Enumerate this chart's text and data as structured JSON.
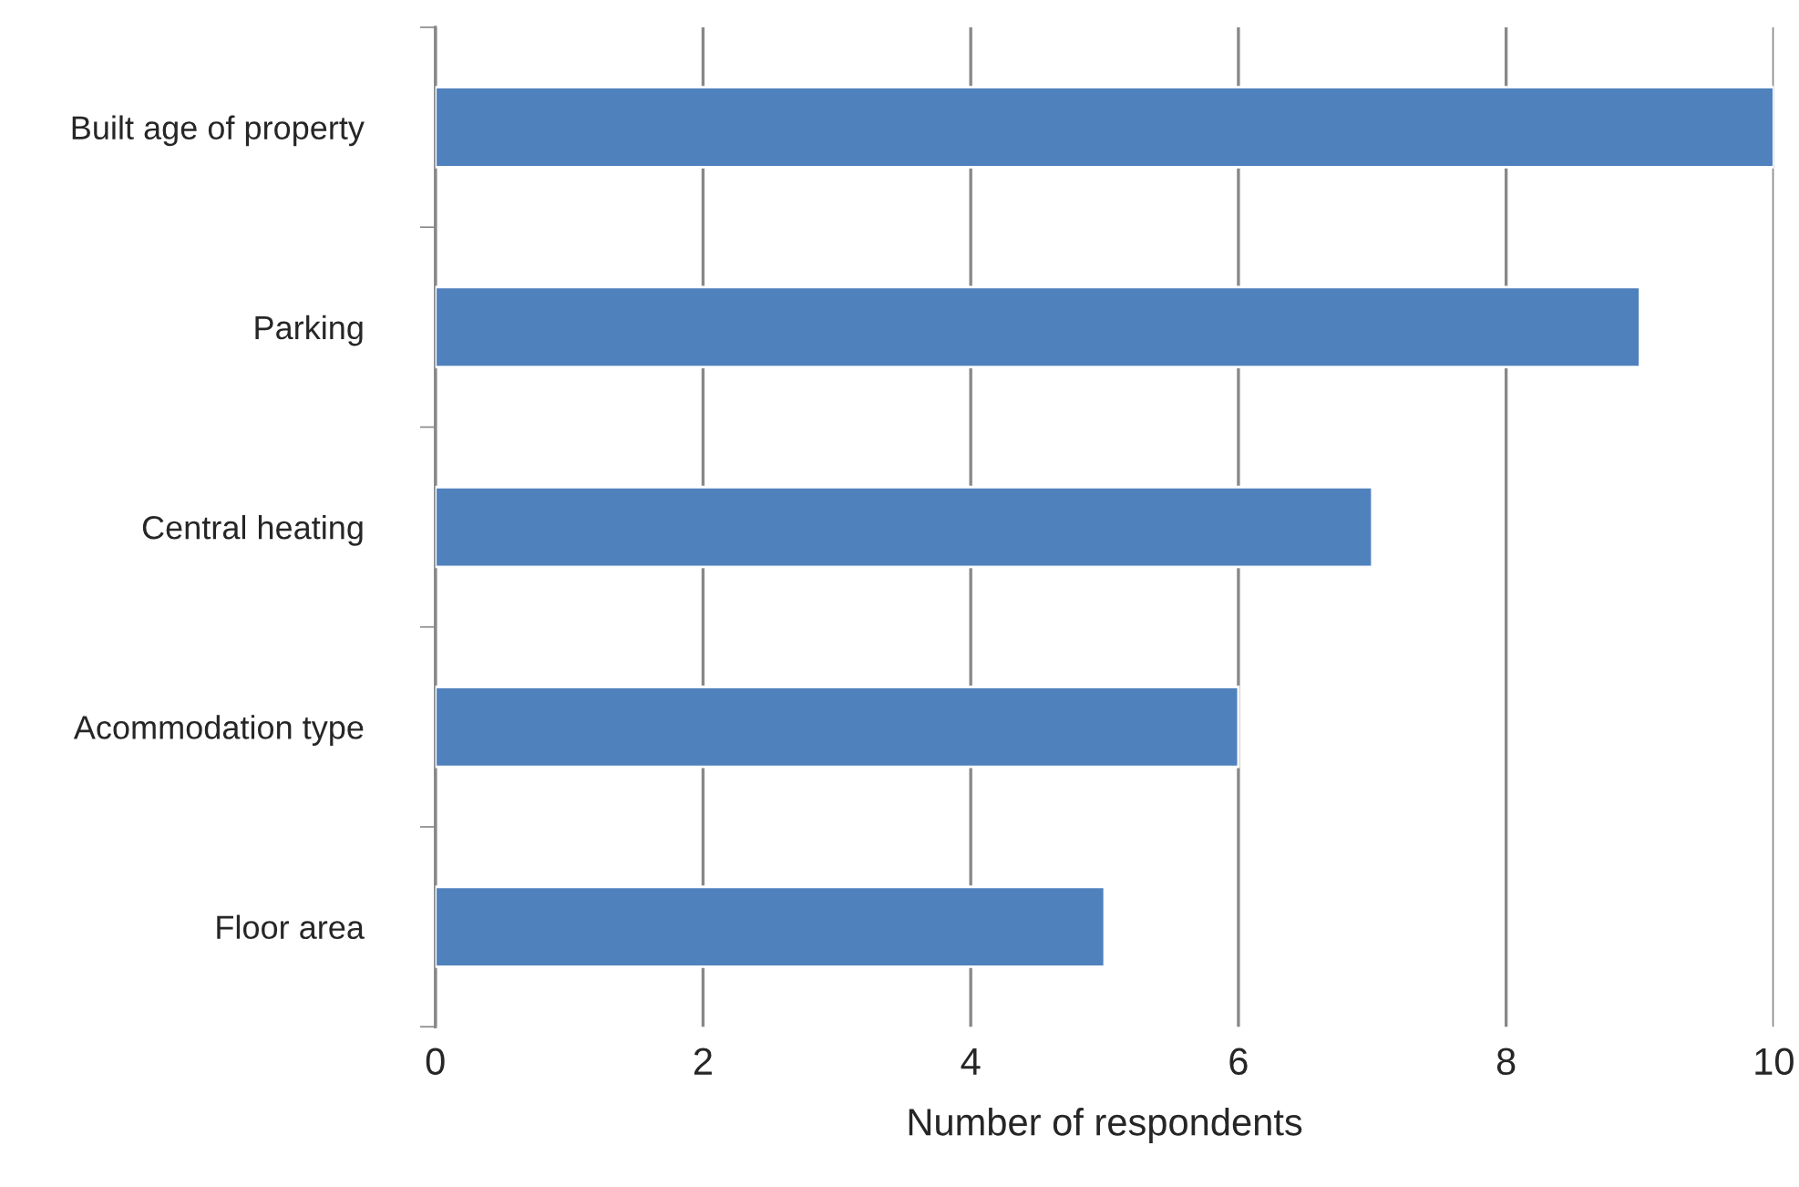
{
  "chart_data": {
    "type": "bar",
    "orientation": "horizontal",
    "xlabel": "Number of respondents",
    "categories": [
      "Built age of property",
      "Parking",
      "Central heating",
      "Acommodation type",
      "Floor area"
    ],
    "values": [
      10,
      9,
      7,
      6,
      5
    ],
    "color": "#4f81bd",
    "xlim": [
      0,
      10
    ],
    "xticks": [
      0,
      2,
      4,
      6,
      8,
      10
    ],
    "grid": "x",
    "legend": false
  }
}
